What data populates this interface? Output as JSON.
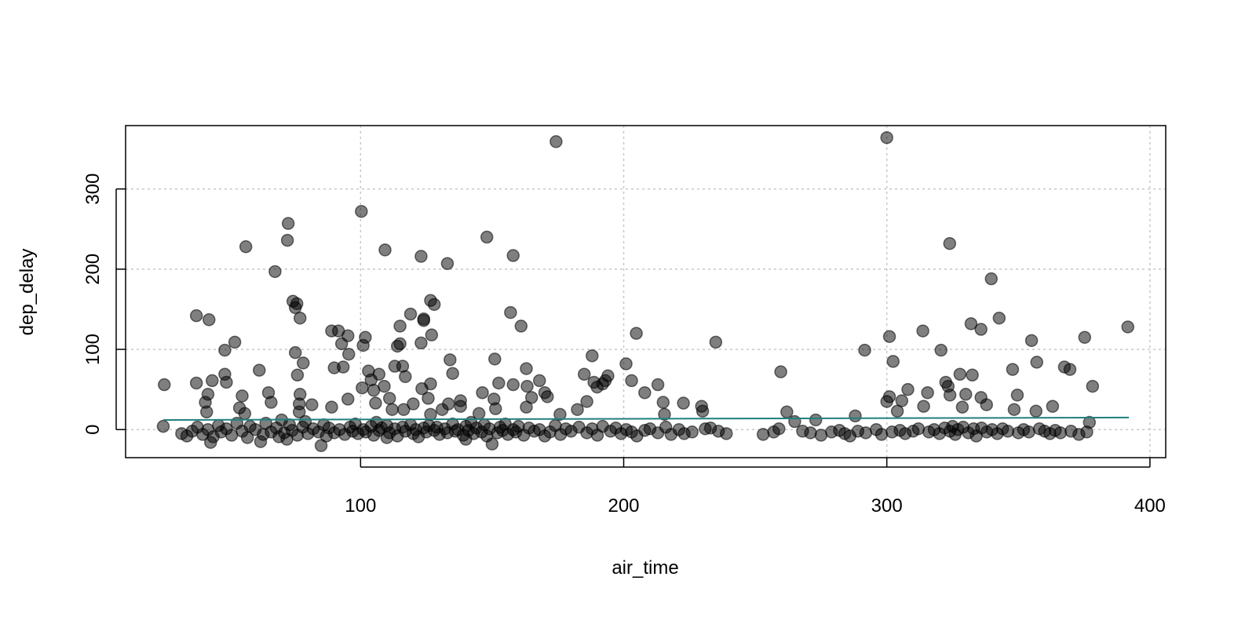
{
  "chart_data": {
    "type": "scatter",
    "title": "",
    "xlabel": "air_time",
    "ylabel": "dep_delay",
    "xlim": [
      10.7,
      406
    ],
    "ylim": [
      -35,
      379
    ],
    "xticks": [
      100,
      200,
      300,
      400
    ],
    "yticks": [
      0,
      100,
      200,
      300
    ],
    "grid": true,
    "point_color": "#000000",
    "point_opacity": 0.5,
    "line_color": "#217f7f",
    "regression_line": {
      "x": [
        25,
        392
      ],
      "y": [
        12,
        15
      ]
    },
    "points": [
      [
        25.4,
        56
      ],
      [
        25,
        4
      ],
      [
        37.6,
        58
      ],
      [
        37.6,
        142
      ],
      [
        42.4,
        137
      ],
      [
        43.6,
        61
      ],
      [
        42,
        44
      ],
      [
        41,
        34
      ],
      [
        41.5,
        22
      ],
      [
        48.4,
        99
      ],
      [
        48.4,
        69
      ],
      [
        49,
        59
      ],
      [
        52.2,
        109
      ],
      [
        56.4,
        228
      ],
      [
        55,
        42
      ],
      [
        54,
        27
      ],
      [
        56,
        20
      ],
      [
        61.5,
        74
      ],
      [
        65,
        46
      ],
      [
        66,
        34
      ],
      [
        67.5,
        197
      ],
      [
        72.5,
        257
      ],
      [
        72.2,
        236
      ],
      [
        74.3,
        160
      ],
      [
        75.8,
        157
      ],
      [
        75.2,
        152
      ],
      [
        77,
        139
      ],
      [
        75.2,
        96
      ],
      [
        76,
        68
      ],
      [
        78.2,
        83
      ],
      [
        77,
        44
      ],
      [
        76.7,
        32
      ],
      [
        76.7,
        22
      ],
      [
        81.5,
        31
      ],
      [
        86,
        6
      ],
      [
        89,
        123
      ],
      [
        91.6,
        123
      ],
      [
        90,
        77
      ],
      [
        92.8,
        107
      ],
      [
        93.4,
        78
      ],
      [
        95.2,
        117
      ],
      [
        95.5,
        94
      ],
      [
        95.2,
        38
      ],
      [
        89,
        28
      ],
      [
        100.3,
        272
      ],
      [
        100.6,
        52
      ],
      [
        101,
        105
      ],
      [
        101.8,
        115
      ],
      [
        103,
        73
      ],
      [
        104,
        62
      ],
      [
        105,
        49
      ],
      [
        105.7,
        33
      ],
      [
        107,
        69
      ],
      [
        109.3,
        224
      ],
      [
        109,
        54
      ],
      [
        111,
        39
      ],
      [
        112,
        25
      ],
      [
        113,
        79
      ],
      [
        114,
        104
      ],
      [
        115,
        129
      ],
      [
        116,
        79
      ],
      [
        115,
        107
      ],
      [
        117,
        66
      ],
      [
        116.4,
        25
      ],
      [
        119,
        144
      ],
      [
        120,
        32
      ],
      [
        123,
        216
      ],
      [
        124,
        138
      ],
      [
        124,
        136
      ],
      [
        123,
        108
      ],
      [
        123.3,
        51
      ],
      [
        126.6,
        161
      ],
      [
        126.6,
        57
      ],
      [
        125.7,
        39
      ],
      [
        127,
        118
      ],
      [
        128,
        156
      ],
      [
        126.6,
        19
      ],
      [
        131,
        25
      ],
      [
        133,
        207
      ],
      [
        134,
        87
      ],
      [
        135,
        70
      ],
      [
        133.4,
        32
      ],
      [
        138,
        36
      ],
      [
        138,
        29
      ],
      [
        145,
        20
      ],
      [
        146.3,
        46
      ],
      [
        148,
        240
      ],
      [
        151,
        88
      ],
      [
        152.5,
        58
      ],
      [
        150.7,
        38
      ],
      [
        151.3,
        26
      ],
      [
        157,
        146
      ],
      [
        158,
        217
      ],
      [
        158,
        56
      ],
      [
        161,
        129
      ],
      [
        163,
        76
      ],
      [
        163.3,
        54
      ],
      [
        163,
        28
      ],
      [
        165,
        40
      ],
      [
        168,
        61
      ],
      [
        170,
        46
      ],
      [
        171,
        41
      ],
      [
        174.3,
        359
      ],
      [
        175.8,
        19
      ],
      [
        182.4,
        25
      ],
      [
        185,
        69
      ],
      [
        186,
        35
      ],
      [
        188,
        92
      ],
      [
        188.7,
        59
      ],
      [
        189.9,
        53
      ],
      [
        193,
        61
      ],
      [
        192,
        57
      ],
      [
        194,
        67
      ],
      [
        200.9,
        82
      ],
      [
        203,
        61
      ],
      [
        204.8,
        120
      ],
      [
        208,
        46
      ],
      [
        213,
        56
      ],
      [
        215,
        34
      ],
      [
        215.5,
        19
      ],
      [
        222.7,
        33
      ],
      [
        229.6,
        29
      ],
      [
        230,
        23
      ],
      [
        235,
        109
      ],
      [
        259.7,
        72
      ],
      [
        262,
        22
      ],
      [
        265,
        10
      ],
      [
        273,
        12
      ],
      [
        291.6,
        99
      ],
      [
        288,
        17
      ],
      [
        300,
        364
      ],
      [
        301,
        116
      ],
      [
        302.4,
        85
      ],
      [
        301,
        41
      ],
      [
        300,
        35
      ],
      [
        304,
        23
      ],
      [
        305.7,
        36
      ],
      [
        308,
        50
      ],
      [
        313.7,
        123
      ],
      [
        315.5,
        46
      ],
      [
        314,
        29
      ],
      [
        320.6,
        99
      ],
      [
        322.4,
        59
      ],
      [
        323.3,
        54
      ],
      [
        324,
        43
      ],
      [
        323.9,
        232
      ],
      [
        327.8,
        69
      ],
      [
        328.7,
        28
      ],
      [
        330,
        44
      ],
      [
        332.5,
        68
      ],
      [
        332,
        132
      ],
      [
        335.8,
        125
      ],
      [
        335.8,
        40
      ],
      [
        337.9,
        31
      ],
      [
        339.7,
        188
      ],
      [
        342.7,
        139
      ],
      [
        347.8,
        75
      ],
      [
        349.6,
        43
      ],
      [
        348.4,
        25
      ],
      [
        355,
        111
      ],
      [
        357,
        84
      ],
      [
        356.7,
        23
      ],
      [
        363,
        29
      ],
      [
        367.5,
        78
      ],
      [
        369.6,
        75
      ],
      [
        375.2,
        115
      ],
      [
        378.2,
        54
      ],
      [
        391.6,
        128
      ],
      [
        377,
        9
      ],
      [
        85,
        -20
      ],
      [
        150,
        -18
      ],
      [
        43,
        -16
      ],
      [
        62,
        -15
      ],
      [
        72,
        -12
      ],
      [
        110,
        -10
      ],
      [
        140,
        -12
      ],
      [
        170,
        -8
      ],
      [
        32,
        -5
      ],
      [
        34,
        -8
      ],
      [
        36,
        -2
      ],
      [
        38,
        3
      ],
      [
        40,
        -6
      ],
      [
        42,
        0
      ],
      [
        44,
        -9
      ],
      [
        46,
        5
      ],
      [
        47,
        -3
      ],
      [
        49,
        1
      ],
      [
        51,
        -7
      ],
      [
        53,
        8
      ],
      [
        55,
        -2
      ],
      [
        57,
        -10
      ],
      [
        58,
        4
      ],
      [
        60,
        0
      ],
      [
        63,
        -6
      ],
      [
        64,
        8
      ],
      [
        66,
        -3
      ],
      [
        68,
        2
      ],
      [
        69,
        -9
      ],
      [
        70,
        12
      ],
      [
        71,
        -4
      ],
      [
        73,
        6
      ],
      [
        74,
        -1
      ],
      [
        76,
        -7
      ],
      [
        78,
        3
      ],
      [
        79,
        10
      ],
      [
        80,
        -5
      ],
      [
        82,
        1
      ],
      [
        84,
        -3
      ],
      [
        87,
        -8
      ],
      [
        88,
        2
      ],
      [
        90,
        -4
      ],
      [
        92,
        0
      ],
      [
        94,
        -6
      ],
      [
        96,
        3
      ],
      [
        97,
        -2
      ],
      [
        98,
        7
      ],
      [
        99,
        -5
      ],
      [
        101,
        0
      ],
      [
        102,
        -3
      ],
      [
        104,
        4
      ],
      [
        105,
        -7
      ],
      [
        106,
        9
      ],
      [
        107,
        -1
      ],
      [
        108,
        2
      ],
      [
        110,
        5
      ],
      [
        111,
        -4
      ],
      [
        113,
        1
      ],
      [
        114,
        -8
      ],
      [
        116,
        3
      ],
      [
        117,
        -2
      ],
      [
        119,
        6
      ],
      [
        120,
        -5
      ],
      [
        121,
        0
      ],
      [
        122,
        -9
      ],
      [
        124,
        2
      ],
      [
        125,
        -3
      ],
      [
        126,
        5
      ],
      [
        128,
        -1
      ],
      [
        129,
        3
      ],
      [
        130,
        -6
      ],
      [
        132,
        1
      ],
      [
        133,
        -4
      ],
      [
        135,
        7
      ],
      [
        136,
        -2
      ],
      [
        137,
        0
      ],
      [
        139,
        -7
      ],
      [
        140,
        4
      ],
      [
        141,
        -1
      ],
      [
        142,
        9
      ],
      [
        143,
        -5
      ],
      [
        144,
        2
      ],
      [
        146,
        -3
      ],
      [
        147,
        6
      ],
      [
        148,
        -8
      ],
      [
        149,
        1
      ],
      [
        152,
        -4
      ],
      [
        153,
        3
      ],
      [
        154,
        -1
      ],
      [
        155,
        7
      ],
      [
        156,
        -6
      ],
      [
        158,
        0
      ],
      [
        159,
        -3
      ],
      [
        160,
        4
      ],
      [
        162,
        -7
      ],
      [
        164,
        2
      ],
      [
        166,
        -2
      ],
      [
        168,
        0
      ],
      [
        172,
        -3
      ],
      [
        174,
        5
      ],
      [
        176,
        -6
      ],
      [
        178,
        1
      ],
      [
        180,
        -2
      ],
      [
        183,
        3
      ],
      [
        186,
        -4
      ],
      [
        188,
        1
      ],
      [
        190,
        -7
      ],
      [
        192,
        4
      ],
      [
        195,
        -2
      ],
      [
        197,
        2
      ],
      [
        199,
        -5
      ],
      [
        201,
        0
      ],
      [
        203,
        -3
      ],
      [
        205,
        -8
      ],
      [
        208,
        -1
      ],
      [
        210,
        1
      ],
      [
        213,
        -4
      ],
      [
        216,
        3
      ],
      [
        218,
        -6
      ],
      [
        221,
        0
      ],
      [
        223,
        -5
      ],
      [
        226,
        -3
      ],
      [
        231,
        1
      ],
      [
        233,
        2
      ],
      [
        236,
        -2
      ],
      [
        239,
        -5
      ],
      [
        253,
        -6
      ],
      [
        257,
        -3
      ],
      [
        259,
        1
      ],
      [
        268,
        -2
      ],
      [
        271,
        -4
      ],
      [
        275,
        -7
      ],
      [
        279,
        -3
      ],
      [
        282,
        -1
      ],
      [
        284,
        -5
      ],
      [
        286,
        -8
      ],
      [
        289,
        -2
      ],
      [
        292,
        -4
      ],
      [
        296,
        0
      ],
      [
        298,
        -6
      ],
      [
        302,
        -3
      ],
      [
        305,
        -1
      ],
      [
        307,
        -5
      ],
      [
        310,
        -2
      ],
      [
        312,
        1
      ],
      [
        316,
        -3
      ],
      [
        318,
        0
      ],
      [
        320,
        -5
      ],
      [
        322,
        2
      ],
      [
        324,
        -2
      ],
      [
        325,
        4
      ],
      [
        326,
        -6
      ],
      [
        327,
        0
      ],
      [
        329,
        3
      ],
      [
        331,
        -4
      ],
      [
        333,
        1
      ],
      [
        334,
        -8
      ],
      [
        336,
        2
      ],
      [
        338,
        -3
      ],
      [
        340,
        0
      ],
      [
        342,
        -5
      ],
      [
        344,
        1
      ],
      [
        346,
        -2
      ],
      [
        350,
        -4
      ],
      [
        352,
        0
      ],
      [
        354,
        -3
      ],
      [
        358,
        1
      ],
      [
        360,
        -2
      ],
      [
        362,
        -5
      ],
      [
        364,
        -1
      ],
      [
        366,
        -4
      ],
      [
        370,
        -2
      ],
      [
        373,
        -6
      ],
      [
        376,
        -3
      ]
    ]
  }
}
